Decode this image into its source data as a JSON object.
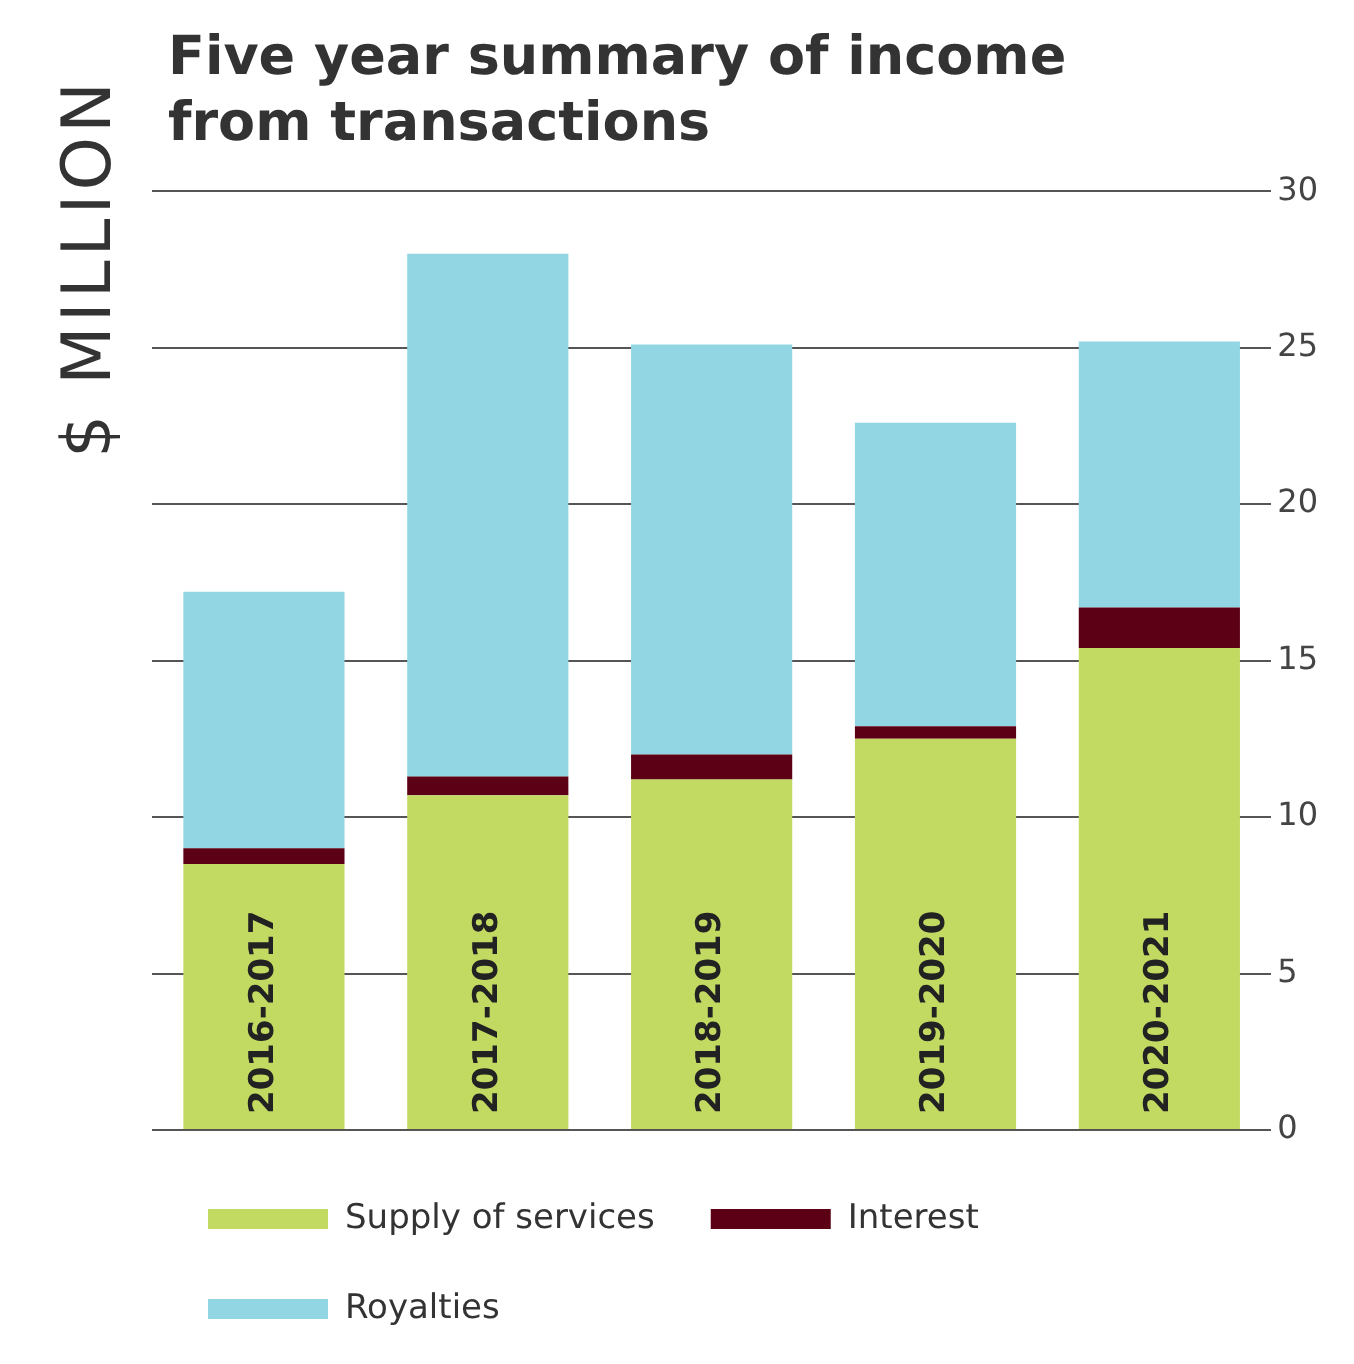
{
  "chart_data": {
    "type": "bar",
    "title": "Five year summary of income from transactions",
    "ylabel": "$ MILLION",
    "categories": [
      "2016-2017",
      "2017-2018",
      "2018-2019",
      "2019-2020",
      "2020-2021"
    ],
    "stacked": true,
    "series": [
      {
        "name": "Supply of services",
        "color": "#c2d962",
        "values": [
          8.5,
          10.7,
          11.2,
          12.5,
          15.4
        ]
      },
      {
        "name": "Interest",
        "color": "#5c0016",
        "values": [
          0.5,
          0.6,
          0.8,
          0.4,
          1.3
        ]
      },
      {
        "name": "Royalties",
        "color": "#92d6e3",
        "values": [
          8.2,
          16.7,
          13.1,
          9.7,
          8.5
        ]
      }
    ],
    "ylim": [
      0,
      30
    ],
    "yticks": [
      0,
      5,
      10,
      15,
      20,
      25,
      30
    ],
    "grid": "y",
    "legend": "bottom"
  }
}
